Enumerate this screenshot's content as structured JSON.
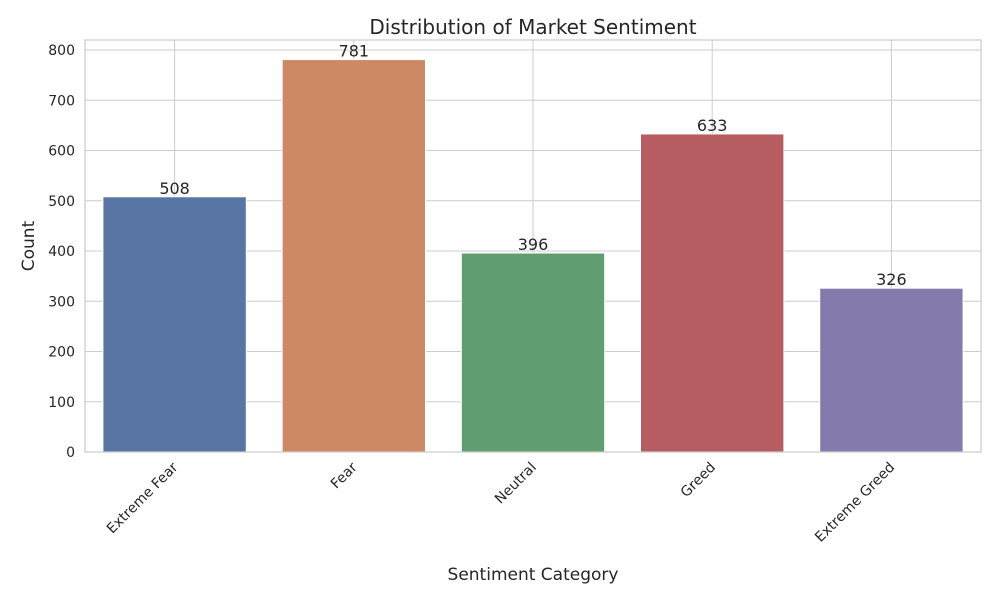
{
  "chart_data": {
    "type": "bar",
    "title": "Distribution of Market Sentiment",
    "xlabel": "Sentiment Category",
    "ylabel": "Count",
    "categories": [
      "Extreme Fear",
      "Fear",
      "Neutral",
      "Greed",
      "Extreme Greed"
    ],
    "values": [
      508,
      781,
      396,
      633,
      326
    ],
    "colors": [
      "#5975a4",
      "#cc8963",
      "#5f9e6e",
      "#b55d60",
      "#857aab"
    ],
    "ylim": [
      0,
      820
    ],
    "yticks": [
      0,
      100,
      200,
      300,
      400,
      500,
      600,
      700,
      800
    ],
    "grid": "horizontal",
    "xtick_rotation": 45,
    "data_labels": true
  }
}
